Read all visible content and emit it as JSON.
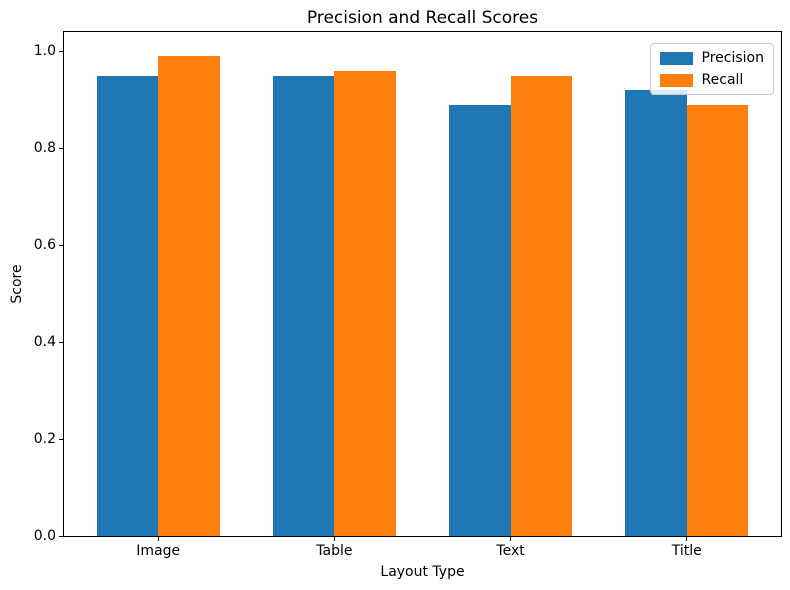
{
  "chart_data": {
    "type": "bar",
    "title": "Precision and Recall Scores",
    "xlabel": "Layout Type",
    "ylabel": "Score",
    "categories": [
      "Image",
      "Table",
      "Text",
      "Title"
    ],
    "series": [
      {
        "name": "Precision",
        "color": "#1f77b4",
        "values": [
          0.95,
          0.95,
          0.89,
          0.92
        ]
      },
      {
        "name": "Recall",
        "color": "#ff7f0e",
        "values": [
          0.99,
          0.96,
          0.95,
          0.89
        ]
      }
    ],
    "ylim": [
      0,
      1.04
    ],
    "yticks": [
      0.0,
      0.2,
      0.4,
      0.6,
      0.8,
      1.0
    ],
    "ytick_decimals": 1,
    "xlim": [
      -0.535,
      3.535
    ],
    "bar_width_data_units": 0.35,
    "grid": false,
    "legend_position": "upper right"
  }
}
